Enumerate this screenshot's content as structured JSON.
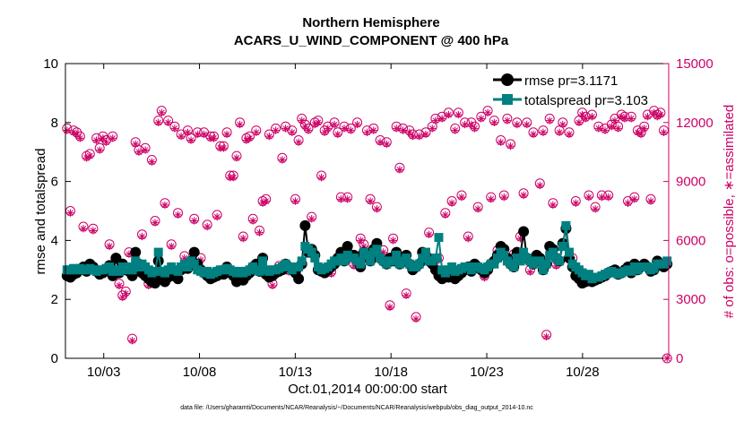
{
  "chart_data": {
    "type": "line",
    "title": "Northern Hemisphere",
    "subtitle": "ACARS_U_WIND_COMPONENT @ 400 hPa",
    "xlabel": "Oct.01,2014 00:00:00 start",
    "ylabel": "rmse and totalspread",
    "ylabel_right": "# of obs: o=possible, ∗=assimilated",
    "footnote": "data file: /Users/gharamti/Documents/NCAR/Reanalysis/~/Documents/NCAR/Reanalysis/webpub/obs_diag_output_2014-10.nc",
    "xlim": [
      1.0,
      32.5
    ],
    "ylim": [
      0,
      10
    ],
    "ylim_right": [
      0,
      15000
    ],
    "x_ticks": [
      3,
      8,
      13,
      18,
      23,
      28
    ],
    "x_tick_labels": [
      "10/03",
      "10/08",
      "10/13",
      "10/18",
      "10/23",
      "10/28"
    ],
    "y_ticks": [
      0,
      2,
      4,
      6,
      8,
      10
    ],
    "y_tick_labels": [
      "0",
      "2",
      "4",
      "6",
      "8",
      "10"
    ],
    "y_right_ticks": [
      0,
      3000,
      6000,
      9000,
      12000,
      15000
    ],
    "y_right_tick_labels": [
      "0",
      "3000",
      "6000",
      "9000",
      "12000",
      "15000"
    ],
    "colors": {
      "rmse": "#000000",
      "totalspread": "#008080",
      "obs": "#cc0066"
    },
    "series": [
      {
        "name": "rmse pr=3.1171",
        "values": [
          2.8,
          2.75,
          2.85,
          2.9,
          3.0,
          3.1,
          2.95,
          3.2,
          3.1,
          2.95,
          2.85,
          2.9,
          3.0,
          3.15,
          2.8,
          3.4,
          2.9,
          3.2,
          3.0,
          2.95,
          2.8,
          3.6,
          3.2,
          2.9,
          2.8,
          2.7,
          2.6,
          2.55,
          3.3,
          2.7,
          2.6,
          2.75,
          2.8,
          2.9,
          2.7,
          3.0,
          3.1,
          3.05,
          3.3,
          3.6,
          3.2,
          3.0,
          2.9,
          2.8,
          2.7,
          2.75,
          2.8,
          2.9,
          2.85,
          3.1,
          2.9,
          2.8,
          2.6,
          2.7,
          2.65,
          2.8,
          2.9,
          3.1,
          3.2,
          2.95,
          3.4,
          2.85,
          2.75,
          2.8,
          2.9,
          2.95,
          3.0,
          3.2,
          3.1,
          3.0,
          2.9,
          2.7,
          3.2,
          4.5,
          3.6,
          3.7,
          3.5,
          3.0,
          2.95,
          2.9,
          3.0,
          3.1,
          3.2,
          3.4,
          3.6,
          3.3,
          3.8,
          3.5,
          3.5,
          3.3,
          3.1,
          3.6,
          3.5,
          3.3,
          3.7,
          3.9,
          3.4,
          3.3,
          3.2,
          3.4,
          3.3,
          3.6,
          3.2,
          3.4,
          3.5,
          3.2,
          3.0,
          3.1,
          3.2,
          3.6,
          3.5,
          3.3,
          3.2,
          3.0,
          2.8,
          2.7,
          2.8,
          2.75,
          2.85,
          2.7,
          2.8,
          2.9,
          3.0,
          3.1,
          2.95,
          3.2,
          3.1,
          3.0,
          2.9,
          3.0,
          3.2,
          3.3,
          3.5,
          3.8,
          3.7,
          3.4,
          3.2,
          3.1,
          3.6,
          3.5,
          4.3,
          3.4,
          3.3,
          3.2,
          3.5,
          3.4,
          3.0,
          3.2,
          3.8,
          3.7,
          3.4,
          3.3,
          3.9,
          4.4,
          3.4,
          3.1,
          2.8,
          2.7,
          2.55,
          2.6,
          2.75,
          2.6,
          2.65,
          2.7,
          2.75,
          2.8,
          2.9,
          2.95,
          3.0,
          2.85,
          2.9,
          3.0,
          3.1,
          2.9,
          3.2,
          3.0,
          3.1,
          3.2,
          3.1,
          2.95,
          3.0,
          3.3,
          3.2,
          3.1,
          3.2
        ]
      },
      {
        "name": "totalspread pr=3.103",
        "values": [
          3.0,
          3.0,
          3.05,
          3.0,
          3.05,
          3.0,
          3.0,
          3.05,
          3.0,
          2.95,
          3.0,
          3.0,
          3.05,
          3.1,
          2.95,
          3.0,
          2.95,
          3.1,
          3.0,
          3.1,
          3.0,
          3.3,
          3.1,
          3.2,
          3.1,
          3.0,
          2.9,
          2.95,
          3.6,
          2.95,
          2.9,
          3.0,
          3.1,
          3.0,
          2.95,
          3.1,
          3.2,
          3.1,
          3.3,
          3.2,
          3.0,
          2.95,
          2.9,
          2.95,
          2.85,
          2.9,
          2.95,
          3.0,
          3.0,
          3.05,
          3.0,
          2.95,
          2.9,
          2.95,
          2.9,
          2.95,
          3.0,
          3.1,
          3.0,
          2.95,
          3.3,
          3.0,
          2.95,
          3.0,
          3.0,
          3.05,
          3.1,
          3.2,
          3.1,
          3.0,
          3.1,
          3.1,
          3.3,
          3.8,
          3.7,
          3.6,
          3.4,
          3.1,
          3.0,
          3.05,
          3.1,
          3.2,
          3.3,
          3.3,
          3.4,
          3.3,
          3.5,
          3.4,
          3.4,
          3.3,
          3.2,
          3.6,
          3.5,
          3.3,
          3.6,
          3.7,
          3.4,
          3.3,
          3.2,
          3.3,
          3.3,
          3.5,
          3.2,
          3.3,
          3.4,
          3.2,
          3.1,
          3.1,
          3.2,
          3.4,
          3.6,
          3.3,
          3.3,
          3.4,
          4.1,
          3.0,
          2.9,
          3.0,
          3.1,
          2.95,
          3.0,
          3.05,
          3.1,
          3.1,
          3.0,
          3.1,
          3.1,
          3.05,
          3.0,
          3.1,
          3.2,
          3.2,
          3.4,
          3.6,
          3.5,
          3.3,
          3.2,
          3.1,
          3.4,
          3.3,
          3.6,
          3.4,
          3.3,
          3.2,
          3.3,
          3.3,
          3.0,
          3.2,
          3.5,
          3.6,
          3.4,
          3.3,
          3.8,
          4.5,
          3.6,
          3.2,
          3.1,
          3.0,
          2.9,
          2.8,
          2.85,
          2.7,
          2.75,
          2.75,
          2.8,
          2.85,
          2.9,
          2.95,
          2.9,
          2.85,
          2.9,
          2.95,
          3.0,
          2.95,
          3.1,
          3.0,
          3.1,
          3.1,
          3.1,
          3.0,
          3.05,
          3.2,
          3.2,
          3.2,
          3.3
        ]
      },
      {
        "name": "possible",
        "values": [
          11700,
          7500,
          11600,
          11500,
          11300,
          6700,
          10300,
          10400,
          6600,
          11200,
          10700,
          11300,
          11100,
          5800,
          11300,
          4300,
          3800,
          3200,
          3400,
          5400,
          1000,
          11000,
          10600,
          6300,
          10700,
          3800,
          10100,
          7000,
          12100,
          12600,
          7900,
          12100,
          5800,
          11800,
          7400,
          11400,
          5200,
          11600,
          11200,
          7100,
          11500,
          5100,
          11500,
          6800,
          11300,
          11300,
          7300,
          10800,
          10800,
          11500,
          9300,
          9300,
          10300,
          12000,
          6200,
          11200,
          11300,
          7100,
          11600,
          6500,
          8000,
          8100,
          11400,
          3800,
          11700,
          4700,
          10200,
          11800,
          4500,
          11600,
          8100,
          11100,
          12200,
          11900,
          11700,
          7200,
          12000,
          12100,
          9300,
          11600,
          11800,
          4400,
          12000,
          11500,
          8200,
          11800,
          8200,
          11700,
          4800,
          12000,
          6100,
          5800,
          11600,
          8100,
          11700,
          7700,
          11100,
          5500,
          11000,
          2700,
          6100,
          11800,
          9700,
          11700,
          3300,
          11600,
          11400,
          2100,
          11400,
          5000,
          11500,
          6400,
          11800,
          12200,
          5100,
          12300,
          7400,
          12500,
          8000,
          11700,
          12500,
          8300,
          12000,
          6200,
          12000,
          11800,
          7700,
          12300,
          4200,
          12600,
          8200,
          12100,
          5500,
          11100,
          8300,
          12200,
          10900,
          5300,
          12000,
          6200,
          8400,
          12000,
          4500,
          11500,
          4900,
          8900,
          11600,
          1200,
          12200,
          7900,
          4800,
          11600,
          12000,
          6700,
          11500,
          5100,
          8000,
          12100,
          12500,
          12300,
          8300,
          12400,
          7700,
          11800,
          8300,
          11700,
          8300,
          11900,
          12200,
          11800,
          12400,
          12300,
          8000,
          12300,
          8200,
          11600,
          11500,
          11800,
          12400,
          8100,
          12600,
          12400,
          12500,
          11600,
          0
        ]
      },
      {
        "name": "assimilated",
        "values": [
          11600,
          7400,
          11500,
          11400,
          11200,
          6600,
          10200,
          10300,
          6500,
          11100,
          10600,
          11200,
          11000,
          5700,
          11200,
          4200,
          3700,
          3100,
          3300,
          5300,
          900,
          10900,
          10500,
          6200,
          10600,
          3700,
          10000,
          6900,
          12000,
          12500,
          7800,
          12000,
          5700,
          11700,
          7300,
          11300,
          5100,
          11500,
          11100,
          7000,
          11400,
          5000,
          11400,
          6700,
          11200,
          11200,
          7200,
          10700,
          10700,
          11400,
          9200,
          9200,
          10200,
          11900,
          6100,
          11100,
          11200,
          7000,
          11500,
          6400,
          7900,
          8000,
          11300,
          3700,
          11600,
          4600,
          10100,
          11700,
          4400,
          11500,
          8000,
          11000,
          12100,
          11800,
          11600,
          7100,
          11900,
          12000,
          9200,
          11500,
          11700,
          4300,
          11900,
          11400,
          8100,
          11700,
          8100,
          11600,
          4700,
          11900,
          6000,
          5700,
          11500,
          8000,
          11600,
          7600,
          11000,
          5400,
          10900,
          2600,
          6000,
          11700,
          9600,
          11600,
          3200,
          11500,
          11300,
          2000,
          11300,
          4900,
          11400,
          6300,
          11700,
          12100,
          5000,
          12200,
          7300,
          12400,
          7900,
          11600,
          12400,
          8200,
          11900,
          6100,
          11900,
          11700,
          7600,
          12200,
          4100,
          12500,
          8100,
          12000,
          5400,
          11000,
          8200,
          12100,
          10800,
          5200,
          11900,
          6100,
          8300,
          11900,
          4400,
          11400,
          4800,
          8800,
          11500,
          1100,
          12100,
          7800,
          4700,
          11500,
          11900,
          6600,
          11400,
          5000,
          7900,
          12000,
          12400,
          12200,
          8200,
          12300,
          7600,
          11700,
          8200,
          11600,
          8200,
          11800,
          12100,
          11700,
          12300,
          12200,
          7900,
          12200,
          8100,
          11500,
          11400,
          11700,
          12300,
          8000,
          12500,
          12300,
          12400,
          11500,
          0
        ]
      }
    ]
  }
}
